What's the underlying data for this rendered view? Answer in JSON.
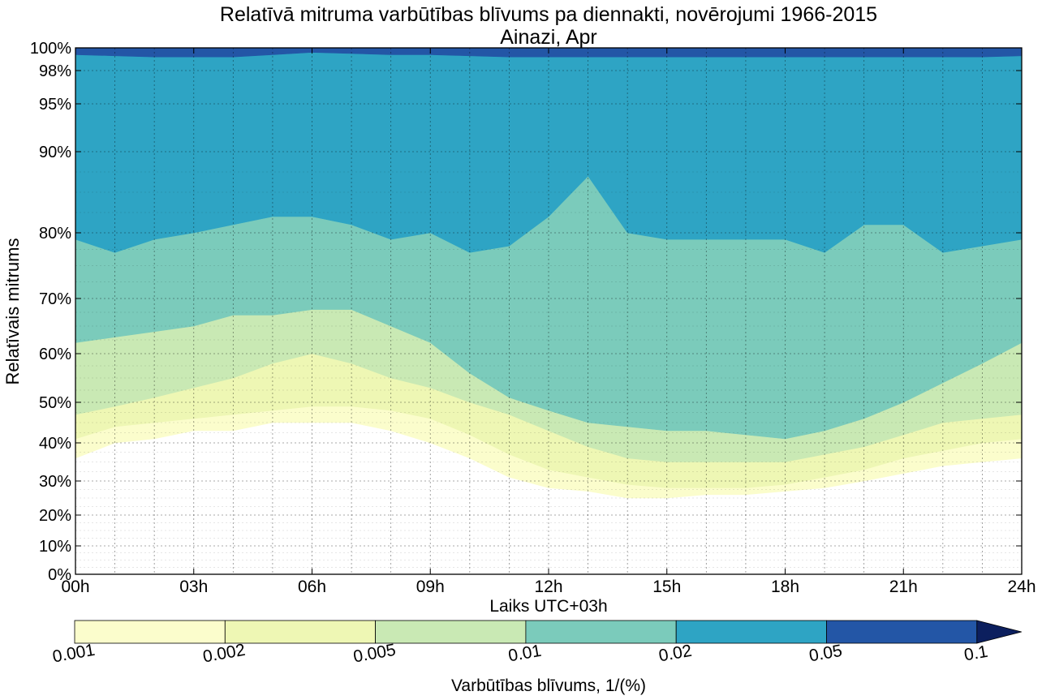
{
  "chart_data": {
    "type": "contourf",
    "title": "Relatīvā mitruma varbūtības blīvums pa diennakti, novērojumi 1966-2015",
    "subtitle": "Ainazi, Apr",
    "xlabel": "Laiks UTC+03h",
    "ylabel": "Relatīvais mitrums",
    "x_range_hours": [
      0,
      24
    ],
    "x_ticks": [
      {
        "value": 0,
        "label": "00h"
      },
      {
        "value": 3,
        "label": "03h"
      },
      {
        "value": 6,
        "label": "06h"
      },
      {
        "value": 9,
        "label": "09h"
      },
      {
        "value": 12,
        "label": "12h"
      },
      {
        "value": 15,
        "label": "15h"
      },
      {
        "value": 18,
        "label": "18h"
      },
      {
        "value": 21,
        "label": "21h"
      },
      {
        "value": 24,
        "label": "24h"
      }
    ],
    "y_ticks": [
      {
        "value": 0,
        "label": "0%"
      },
      {
        "value": 10,
        "label": "10%"
      },
      {
        "value": 20,
        "label": "20%"
      },
      {
        "value": 30,
        "label": "30%"
      },
      {
        "value": 40,
        "label": "40%"
      },
      {
        "value": 50,
        "label": "50%"
      },
      {
        "value": 60,
        "label": "60%"
      },
      {
        "value": 70,
        "label": "70%"
      },
      {
        "value": 80,
        "label": "80%"
      },
      {
        "value": 90,
        "label": "90%"
      },
      {
        "value": 95,
        "label": "95%"
      },
      {
        "value": 98,
        "label": "98%"
      },
      {
        "value": 100,
        "label": "100%"
      }
    ],
    "grid": true,
    "contour_levels": [
      0.001,
      0.002,
      0.005,
      0.01,
      0.02,
      0.05,
      0.1
    ],
    "level_colors": [
      "#fbfdcc",
      "#eef7b4",
      "#c9e9b4",
      "#7bcbbb",
      "#2ea4c4",
      "#2356a6",
      "#0c1f5e"
    ],
    "hours": [
      0,
      1,
      2,
      3,
      4,
      5,
      6,
      7,
      8,
      9,
      10,
      11,
      12,
      13,
      14,
      15,
      16,
      17,
      18,
      19,
      20,
      21,
      22,
      23,
      24
    ],
    "band_boundaries_rh": [
      {
        "density_above": 0.001,
        "rh": [
          36,
          40,
          41,
          43,
          43,
          45,
          45,
          45,
          43,
          40,
          36,
          31,
          28,
          27,
          25,
          25,
          26,
          26,
          27,
          28,
          30,
          32,
          34,
          35,
          36
        ]
      },
      {
        "density_above": 0.002,
        "rh": [
          41,
          44,
          45,
          46,
          47,
          48,
          49,
          49,
          48,
          46,
          42,
          37,
          33,
          31,
          29,
          28,
          28,
          28,
          29,
          31,
          33,
          36,
          38,
          40,
          41
        ]
      },
      {
        "density_above": 0.005,
        "rh": [
          47,
          49,
          51,
          53,
          55,
          58,
          60,
          58,
          55,
          53,
          50,
          47,
          43,
          39,
          36,
          35,
          35,
          35,
          35,
          37,
          39,
          42,
          45,
          46,
          47
        ]
      },
      {
        "density_above": 0.01,
        "rh": [
          62,
          63,
          64,
          65,
          67,
          67,
          68,
          68,
          65,
          62,
          56,
          51,
          48,
          45,
          44,
          43,
          43,
          42,
          41,
          43,
          46,
          50,
          54,
          58,
          62
        ]
      },
      {
        "density_above": 0.02,
        "rh": [
          79,
          77,
          79,
          80,
          81,
          82,
          82,
          81,
          79,
          80,
          77,
          78,
          82,
          87,
          80,
          79,
          79,
          79,
          79,
          77,
          81,
          81,
          77,
          78,
          79
        ]
      },
      {
        "density_above": 0.05,
        "rh": [
          99.4,
          99.3,
          99.2,
          99.2,
          99.2,
          99.4,
          99.6,
          99.5,
          99.4,
          99.4,
          99.3,
          99.2,
          99.2,
          99.2,
          99.2,
          99.2,
          99.2,
          99.2,
          99.2,
          99.2,
          99.2,
          99.2,
          99.2,
          99.2,
          99.3
        ]
      }
    ],
    "colorbar": {
      "label": "Varbūtības blīvums, 1/(%)",
      "tick_labels": [
        "0.001",
        "0.002",
        "0.005",
        "0.01",
        "0.02",
        "0.05",
        "0.1"
      ],
      "extend": "max"
    }
  }
}
